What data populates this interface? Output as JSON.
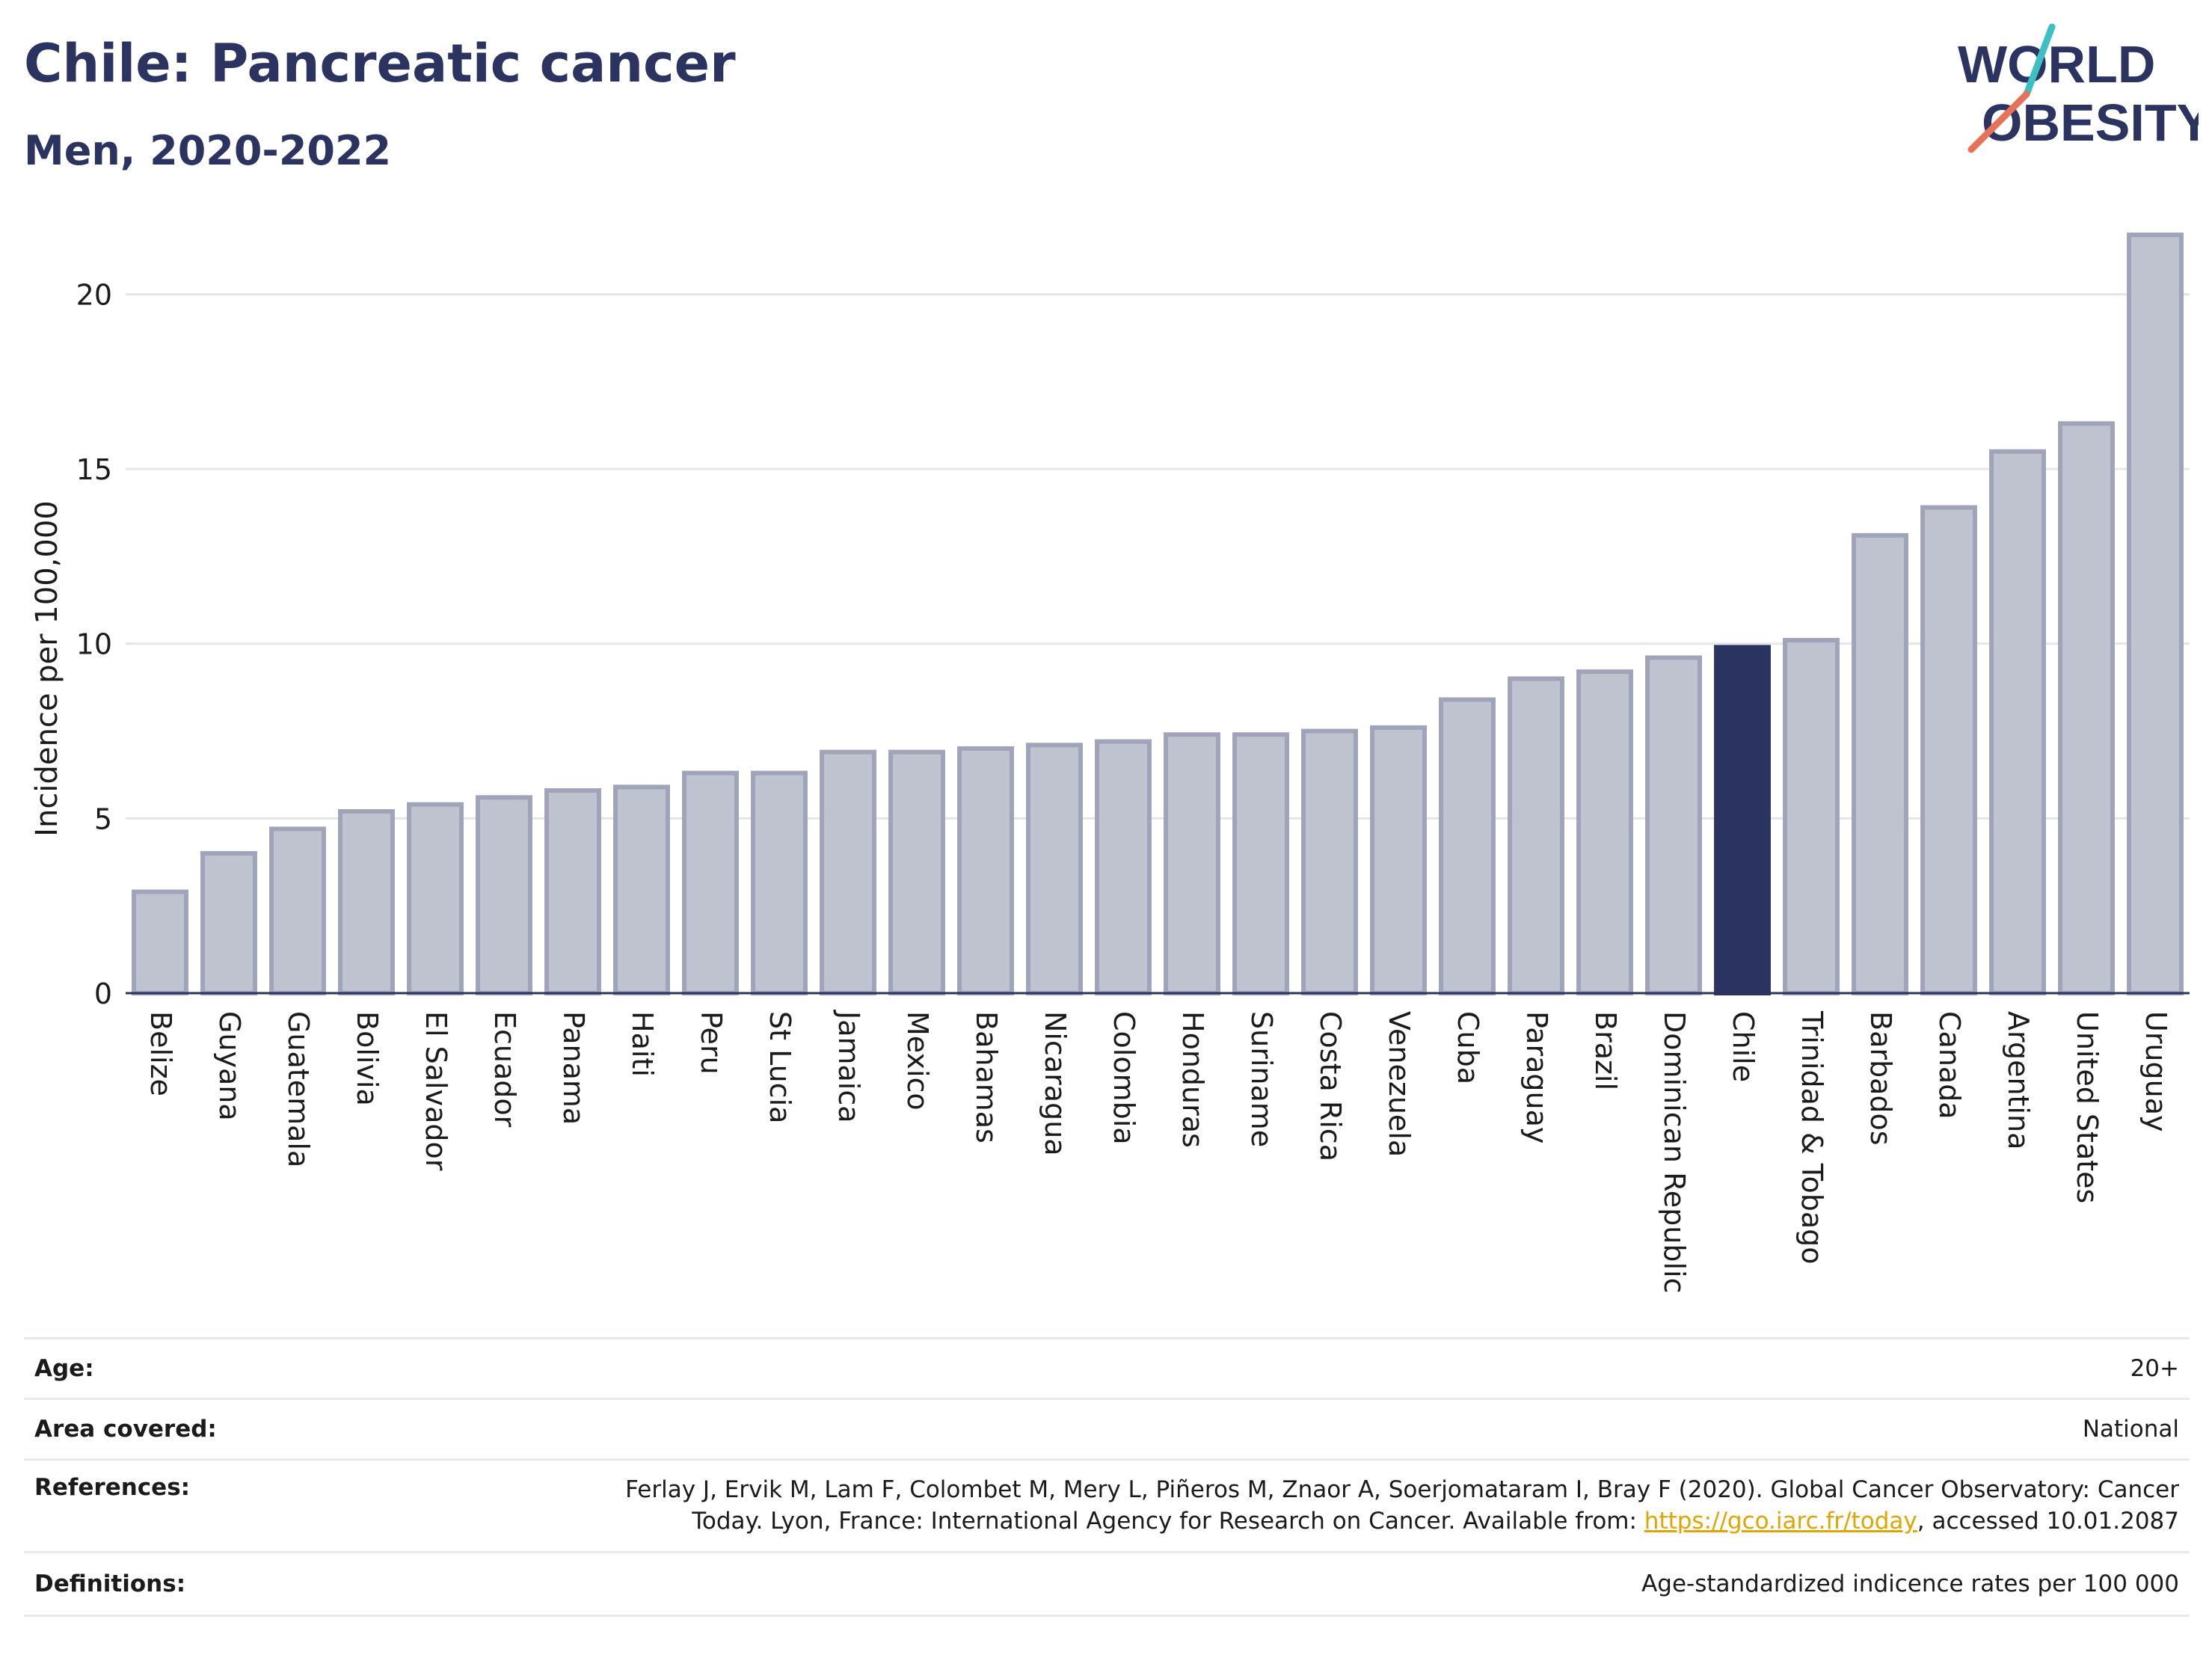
{
  "header": {
    "title": "Chile: Pancreatic cancer",
    "subtitle": "Men, 2020-2022"
  },
  "logo": {
    "line1": "WORLD",
    "line2": "OBESITY",
    "text_color": "#2b3461",
    "slash_color_top": "#3cc0c4",
    "slash_color_bottom": "#e8715a"
  },
  "chart_data": {
    "type": "bar",
    "title": "Chile: Pancreatic cancer",
    "subtitle": "Men, 2020-2022",
    "xlabel": "",
    "ylabel": "Incidence per 100,000",
    "ylim": [
      0,
      22
    ],
    "yticks": [
      0,
      5,
      10,
      15,
      20
    ],
    "grid": true,
    "highlight": "Chile",
    "colors": {
      "bar": "#bfc2cf",
      "bar_edge": "#9fa4b9",
      "highlight": "#2b3461"
    },
    "categories": [
      "Belize",
      "Guyana",
      "Guatemala",
      "Bolivia",
      "El Salvador",
      "Ecuador",
      "Panama",
      "Haiti",
      "Peru",
      "St Lucia",
      "Jamaica",
      "Mexico",
      "Bahamas",
      "Nicaragua",
      "Colombia",
      "Honduras",
      "Suriname",
      "Costa Rica",
      "Venezuela",
      "Cuba",
      "Paraguay",
      "Brazil",
      "Dominican Republic",
      "Chile",
      "Trinidad & Tobago",
      "Barbados",
      "Canada",
      "Argentina",
      "United States",
      "Uruguay"
    ],
    "values": [
      2.9,
      4.0,
      4.7,
      5.2,
      5.4,
      5.6,
      5.8,
      5.9,
      6.3,
      6.3,
      6.9,
      6.9,
      7.0,
      7.1,
      7.2,
      7.4,
      7.4,
      7.5,
      7.6,
      8.4,
      9.0,
      9.2,
      9.6,
      9.9,
      10.1,
      13.1,
      13.9,
      15.5,
      16.3,
      21.7
    ]
  },
  "info": {
    "age_label": "Age:",
    "age_value": "20+",
    "area_label": "Area covered:",
    "area_value": "National",
    "references_label": "References:",
    "references_line1": "Ferlay J, Ervik M, Lam F, Colombet M, Mery L, Piñeros M, Znaor A, Soerjomataram I, Bray F (2020). Global Cancer Observatory: Cancer",
    "references_line2_before": "Today. Lyon, France: International Agency for Research on Cancer. Available from: ",
    "references_link": "https://gco.iarc.fr/today",
    "references_line2_after": ", accessed 10.01.2087",
    "definitions_label": "Definitions:",
    "definitions_value": "Age-standardized indicence rates per 100 000"
  }
}
